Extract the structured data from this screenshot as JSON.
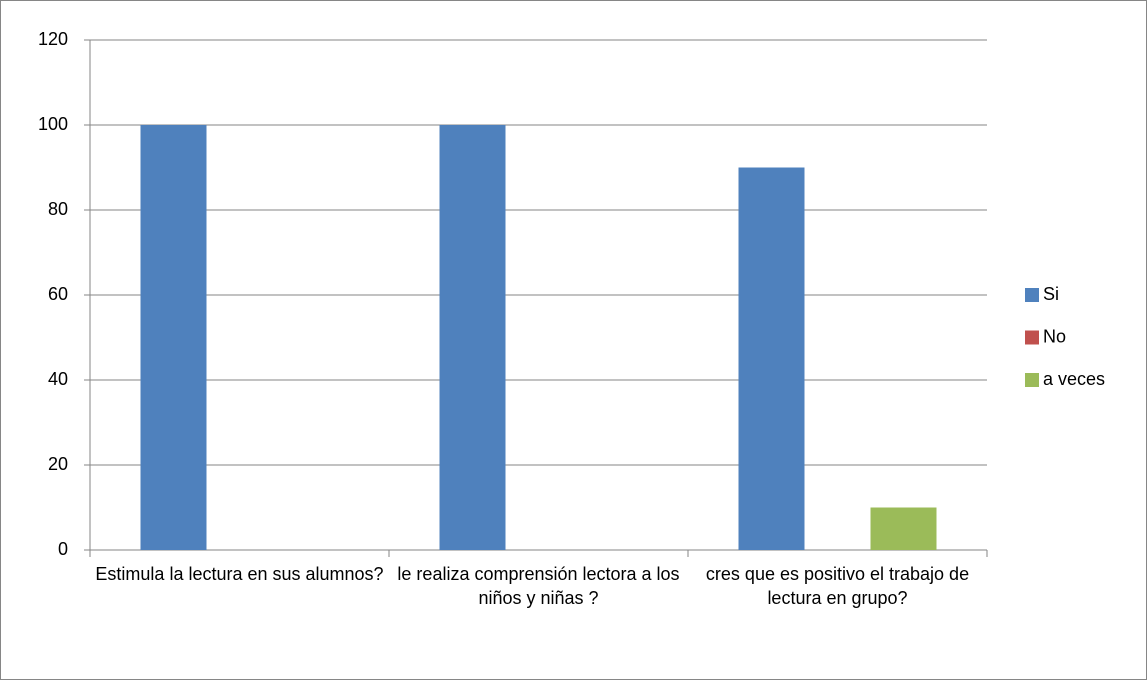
{
  "chart_data": {
    "type": "bar",
    "categories": [
      "Estimula la lectura en sus alumnos?",
      "le realiza comprensión lectora a los niños y niñas ?",
      "cres que es positivo el trabajo de lectura en grupo?"
    ],
    "series": [
      {
        "name": "Si",
        "color": "#4f81bd",
        "values": [
          100,
          100,
          90
        ]
      },
      {
        "name": "No",
        "color": "#c0504d",
        "values": [
          0,
          0,
          0
        ]
      },
      {
        "name": "a veces",
        "color": "#9bbb59",
        "values": [
          0,
          0,
          10
        ]
      }
    ],
    "ylim": [
      0,
      120
    ],
    "yticks": [
      0,
      20,
      40,
      60,
      80,
      100,
      120
    ],
    "grid": true,
    "legend": "right"
  }
}
